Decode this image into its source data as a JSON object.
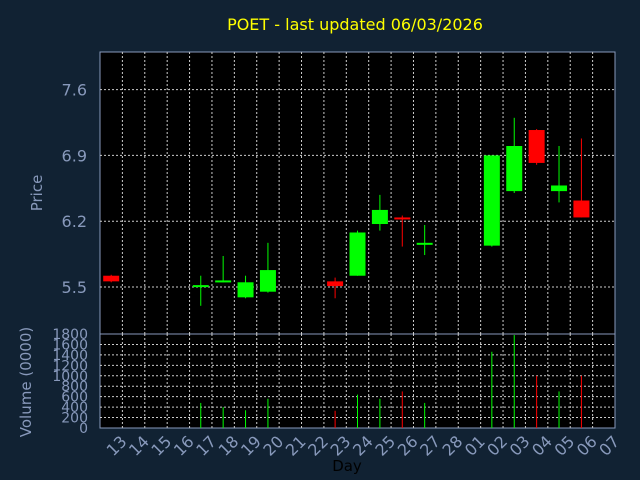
{
  "chart_data": {
    "type": "candlestick",
    "title": "POET - last updated 06/03/2026",
    "xlabel": "Day",
    "ylabel": "Price",
    "volume_label": "Volume (0000)",
    "price_ylim": [
      5.0,
      8.0
    ],
    "price_ticks": [
      "5.5",
      "6.2",
      "6.9",
      "7.6"
    ],
    "volume_ylim": [
      0,
      1800
    ],
    "volume_ticks": [
      "0",
      "200",
      "400",
      "600",
      "800",
      "1000",
      "1200",
      "1400",
      "1600",
      "1800"
    ],
    "grid": true,
    "days": [
      "13",
      "14",
      "15",
      "16",
      "17",
      "18",
      "19",
      "20",
      "21",
      "22",
      "23",
      "24",
      "25",
      "26",
      "27",
      "28",
      "01",
      "02",
      "03",
      "04",
      "05",
      "06",
      "07"
    ],
    "candles": [
      {
        "day": "13",
        "open": 5.62,
        "close": 5.56,
        "high": 5.63,
        "low": 5.55,
        "volume": 0
      },
      {
        "day": "17",
        "open": 5.5,
        "close": 5.52,
        "high": 5.62,
        "low": 5.3,
        "volume": 480
      },
      {
        "day": "18",
        "open": 5.55,
        "close": 5.57,
        "high": 5.83,
        "low": 5.55,
        "volume": 400
      },
      {
        "day": "19",
        "open": 5.39,
        "close": 5.55,
        "high": 5.62,
        "low": 5.38,
        "volume": 340
      },
      {
        "day": "20",
        "open": 5.45,
        "close": 5.68,
        "high": 5.97,
        "low": 5.44,
        "volume": 560
      },
      {
        "day": "23",
        "open": 5.56,
        "close": 5.51,
        "high": 5.6,
        "low": 5.38,
        "volume": 330
      },
      {
        "day": "24",
        "open": 5.62,
        "close": 6.08,
        "high": 6.1,
        "low": 5.62,
        "volume": 640
      },
      {
        "day": "25",
        "open": 6.17,
        "close": 6.32,
        "high": 6.48,
        "low": 6.1,
        "volume": 560
      },
      {
        "day": "26",
        "open": 6.24,
        "close": 6.22,
        "high": 6.26,
        "low": 5.93,
        "volume": 700
      },
      {
        "day": "27",
        "open": 5.96,
        "close": 5.97,
        "high": 6.16,
        "low": 5.84,
        "volume": 480
      },
      {
        "day": "02",
        "open": 5.94,
        "close": 6.9,
        "high": 6.9,
        "low": 5.93,
        "volume": 1460
      },
      {
        "day": "03",
        "open": 6.52,
        "close": 7.0,
        "high": 7.3,
        "low": 6.5,
        "volume": 1780
      },
      {
        "day": "04",
        "open": 7.17,
        "close": 6.82,
        "high": 7.18,
        "low": 6.8,
        "volume": 1000
      },
      {
        "day": "05",
        "open": 6.52,
        "close": 6.58,
        "high": 7.0,
        "low": 6.4,
        "volume": 700
      },
      {
        "day": "06",
        "open": 6.42,
        "close": 6.24,
        "high": 7.08,
        "low": 6.24,
        "volume": 1000
      }
    ],
    "colors": {
      "up": "#00ff00",
      "down": "#ff0000",
      "grid": "#cccccc",
      "axis": "#8899bb",
      "title": "#ffff00",
      "background": "#112233",
      "plot_background": "#000000"
    }
  }
}
